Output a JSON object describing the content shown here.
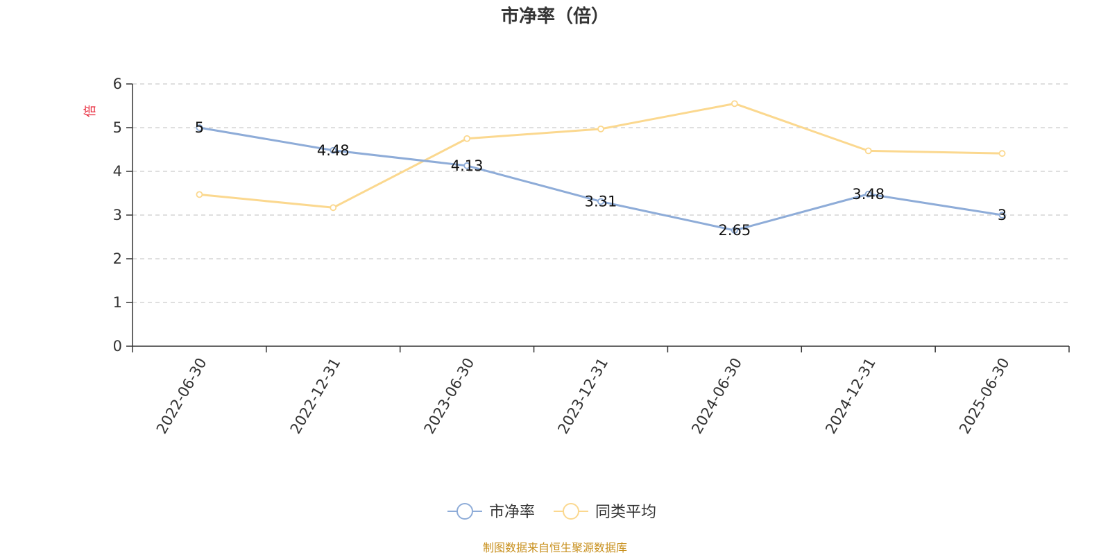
{
  "source_note": "制图数据来自恒生聚源数据库",
  "chart_data": {
    "type": "line",
    "title": "市净率（倍）",
    "ylabel": "倍",
    "xlabel": "",
    "categories": [
      "2022-06-30",
      "2022-12-31",
      "2023-06-30",
      "2023-12-31",
      "2024-06-30",
      "2024-12-31",
      "2025-06-30"
    ],
    "ylim": [
      0,
      6
    ],
    "yticks": [
      0,
      1,
      2,
      3,
      4,
      5,
      6
    ],
    "grid": true,
    "legend_position": "bottom",
    "series": [
      {
        "name": "市净率",
        "color": "#8eacd8",
        "values": [
          5,
          4.48,
          4.13,
          3.31,
          2.65,
          3.48,
          3
        ],
        "show_labels": true,
        "labels": [
          "5",
          "4.48",
          "4.13",
          "3.31",
          "2.65",
          "3.48",
          "3"
        ]
      },
      {
        "name": "同类平均",
        "color": "#fbd88f",
        "values": [
          3.47,
          3.17,
          4.75,
          4.97,
          5.55,
          4.47,
          4.41
        ],
        "show_labels": false
      }
    ]
  }
}
